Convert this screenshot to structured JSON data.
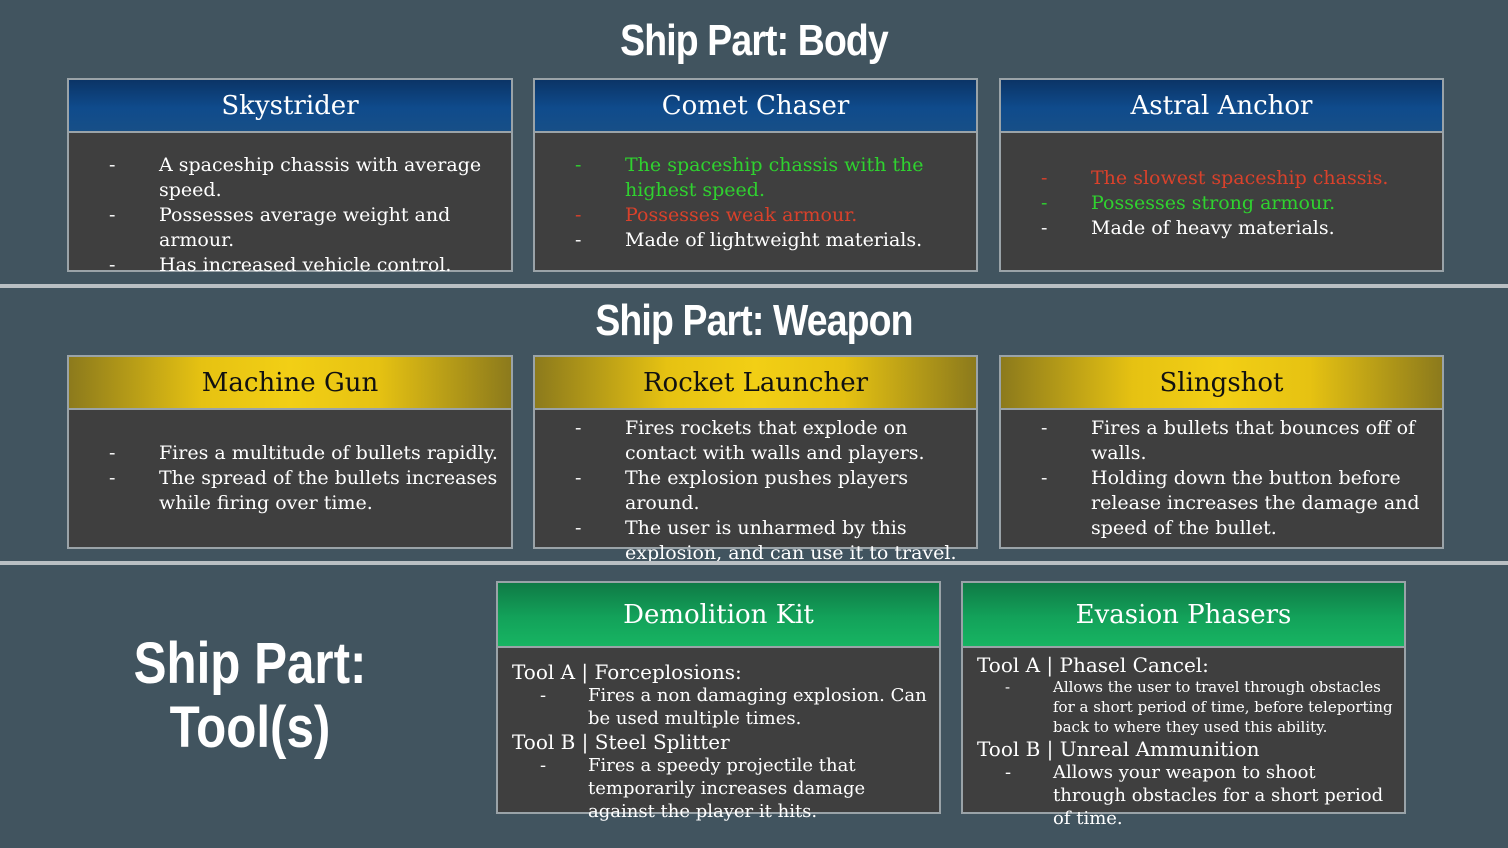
{
  "sections": {
    "body_title": "Ship Part: Body",
    "weapon_title": "Ship Part: Weapon",
    "tools_title_line1": "Ship Part:",
    "tools_title_line2": "Tool(s)"
  },
  "body_cards": [
    {
      "name": "Skystrider",
      "bullets": [
        {
          "text": "A spaceship chassis with average speed.",
          "color": "#ffffff"
        },
        {
          "text": "Possesses average weight and armour.",
          "color": "#ffffff"
        },
        {
          "text": "Has increased vehicle control.",
          "color": "#ffffff"
        }
      ]
    },
    {
      "name": "Comet Chaser",
      "bullets": [
        {
          "text": "The spaceship chassis with the highest speed.",
          "color": "#2fd22f"
        },
        {
          "text": "Possesses weak armour.",
          "color": "#d9412b"
        },
        {
          "text": "Made of lightweight materials.",
          "color": "#ffffff"
        }
      ]
    },
    {
      "name": "Astral Anchor",
      "bullets": [
        {
          "text": "The slowest spaceship chassis.",
          "color": "#d9412b"
        },
        {
          "text": "Possesses strong armour.",
          "color": "#2fd22f"
        },
        {
          "text": "Made of heavy materials.",
          "color": "#ffffff"
        }
      ]
    }
  ],
  "weapon_cards": [
    {
      "name": "Machine Gun",
      "bullets": [
        "Fires a multitude of bullets rapidly.",
        "The spread of the bullets increases while firing over time."
      ]
    },
    {
      "name": "Rocket Launcher",
      "bullets": [
        "Fires rockets that explode on contact with walls and players.",
        "The explosion pushes players around.",
        "The user is unharmed by this explosion, and can use it to travel."
      ]
    },
    {
      "name": "Slingshot",
      "bullets": [
        "Fires a bullets that bounces off of walls.",
        "Holding down the button before release increases the damage and speed of the bullet."
      ]
    }
  ],
  "tool_cards": [
    {
      "name": "Demolition Kit",
      "tool_a": "Tool A | Forceplosions:",
      "tool_a_desc": "Fires a non damaging explosion. Can be used multiple times.",
      "tool_b": "Tool B | Steel Splitter",
      "tool_b_desc": "Fires a speedy projectile that temporarily increases damage against the player it hits."
    },
    {
      "name": "Evasion Phasers",
      "tool_a": "Tool A | Phasel Cancel:",
      "tool_a_desc": "Allows the user to travel through obstacles for a short period of time, before teleporting back to where they used this ability.",
      "tool_b": "Tool B | Unreal Ammunition",
      "tool_b_desc": "Allows your weapon to shoot through obstacles for a short  period of time."
    }
  ],
  "bullet_marker": "-",
  "colors": {
    "background": "#41545f",
    "positive": "#2fd22f",
    "negative": "#d9412b"
  }
}
